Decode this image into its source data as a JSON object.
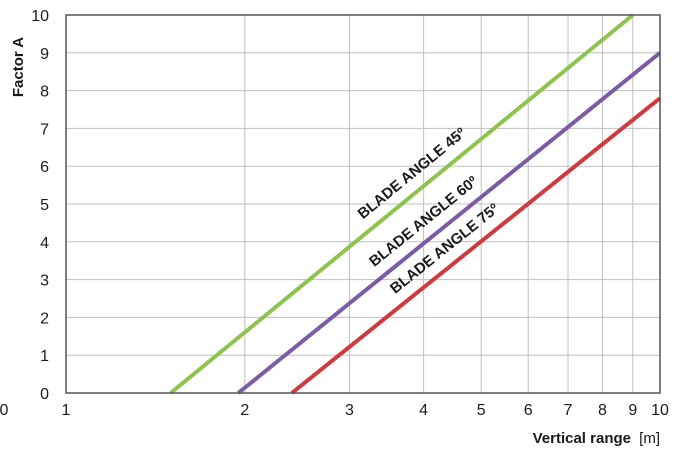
{
  "chart_data": {
    "type": "line",
    "xscale": "log",
    "xlim": [
      1,
      10
    ],
    "ylim": [
      0,
      10
    ],
    "grid": true,
    "legend": "none",
    "x_ticks": [
      "1",
      "2",
      "3",
      "4",
      "5",
      "6",
      "7",
      "8",
      "9",
      "10"
    ],
    "y_ticks": [
      "0",
      "1",
      "2",
      "3",
      "4",
      "5",
      "6",
      "7",
      "8",
      "9",
      "10"
    ],
    "x_extra_label": "0",
    "xlabel": {
      "bold": "Vertical range",
      "unit": "[m]"
    },
    "ylabel": "Factor A",
    "series": [
      {
        "name": "BLADE ANGLE 45º",
        "color": "#8dc44e",
        "x": [
          1.5,
          9.0
        ],
        "y": [
          0,
          10
        ]
      },
      {
        "name": "BLADE ANGLE 60º",
        "color": "#7b5aa6",
        "x": [
          1.95,
          10.0
        ],
        "y": [
          0,
          9.0
        ]
      },
      {
        "name": "BLADE ANGLE 75º",
        "color": "#d0393e",
        "x": [
          2.4,
          10.0
        ],
        "y": [
          0,
          7.8
        ]
      }
    ]
  }
}
